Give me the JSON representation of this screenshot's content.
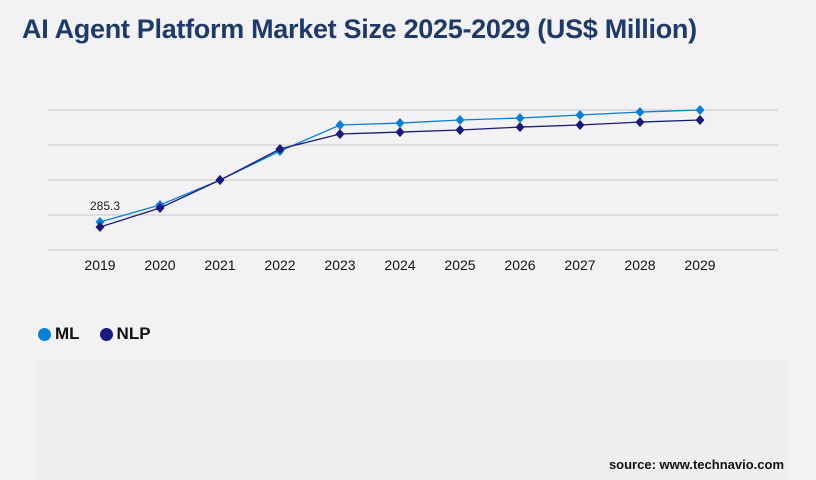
{
  "title": "AI Agent Platform Market Size 2025-2029 (US$ Million)",
  "source": "source: www.technavio.com",
  "chart_data": {
    "type": "line",
    "title": "AI Agent Platform Market Size 2025-2029 (US$ Million)",
    "x": [
      "2019",
      "2020",
      "2021",
      "2022",
      "2023",
      "2024",
      "2025",
      "2026",
      "2027",
      "2028",
      "2029"
    ],
    "series": [
      {
        "name": "ML",
        "color": "#0a7fd6",
        "values": [
          285.3,
          459,
          713,
          1009,
          1274,
          1294,
          1325,
          1345,
          1376,
          1406,
          1427
        ]
      },
      {
        "name": "NLP",
        "color": "#1a1a7a",
        "values": [
          234,
          428,
          713,
          1029,
          1182,
          1202,
          1223,
          1253,
          1274,
          1304,
          1325
        ]
      }
    ],
    "data_labels": [
      {
        "series": "ML",
        "x": "2019",
        "text": "285.3"
      }
    ],
    "ylim": [
      0,
      1427
    ],
    "grid": true,
    "y_tick_labels_visible": false,
    "legend_position": "bottom-left",
    "xlabel": "",
    "ylabel": ""
  }
}
